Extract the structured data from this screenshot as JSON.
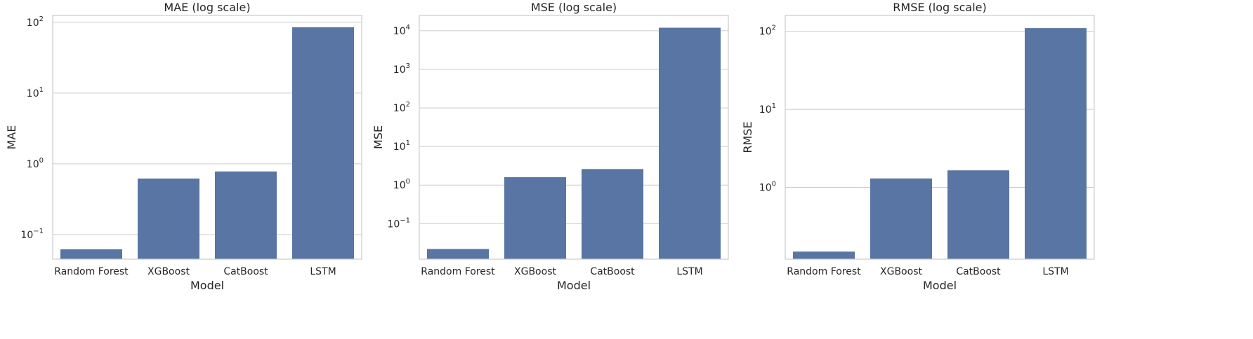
{
  "chart_data": [
    {
      "type": "bar",
      "title": "MAE (log scale)",
      "xlabel": "Model",
      "ylabel": "MAE",
      "yscale": "log",
      "ylim": [
        0.045,
        125
      ],
      "yticks": [
        {
          "value": 0.1,
          "base": "10",
          "exp": "−1"
        },
        {
          "value": 1,
          "base": "10",
          "exp": "0"
        },
        {
          "value": 10,
          "base": "10",
          "exp": "1"
        },
        {
          "value": 100,
          "base": "10",
          "exp": "2"
        }
      ],
      "categories": [
        "Random Forest",
        "XGBoost",
        "CatBoost",
        "LSTM"
      ],
      "values": [
        0.062,
        0.62,
        0.78,
        85
      ],
      "color": "#5875a4",
      "grid": true
    },
    {
      "type": "bar",
      "title": "MSE (log scale)",
      "xlabel": "Model",
      "ylabel": "MSE",
      "yscale": "log",
      "ylim": [
        0.012,
        25000
      ],
      "yticks": [
        {
          "value": 0.1,
          "base": "10",
          "exp": "−1"
        },
        {
          "value": 1,
          "base": "10",
          "exp": "0"
        },
        {
          "value": 10,
          "base": "10",
          "exp": "1"
        },
        {
          "value": 100,
          "base": "10",
          "exp": "2"
        },
        {
          "value": 1000,
          "base": "10",
          "exp": "3"
        },
        {
          "value": 10000,
          "base": "10",
          "exp": "4"
        }
      ],
      "categories": [
        "Random Forest",
        "XGBoost",
        "CatBoost",
        "LSTM"
      ],
      "values": [
        0.022,
        1.6,
        2.6,
        12000
      ],
      "color": "#5875a4",
      "grid": true
    },
    {
      "type": "bar",
      "title": "RMSE (log scale)",
      "xlabel": "Model",
      "ylabel": "RMSE",
      "yscale": "log",
      "ylim": [
        0.12,
        160
      ],
      "yticks": [
        {
          "value": 1,
          "base": "10",
          "exp": "0"
        },
        {
          "value": 10,
          "base": "10",
          "exp": "1"
        },
        {
          "value": 100,
          "base": "10",
          "exp": "2"
        }
      ],
      "categories": [
        "Random Forest",
        "XGBoost",
        "CatBoost",
        "LSTM"
      ],
      "values": [
        0.15,
        1.3,
        1.65,
        110
      ],
      "color": "#5875a4",
      "grid": true
    }
  ]
}
